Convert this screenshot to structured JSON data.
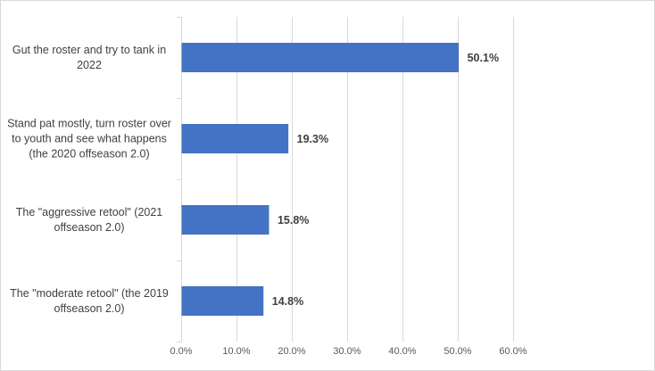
{
  "chart_data": {
    "type": "bar",
    "orientation": "horizontal",
    "categories": [
      "Gut the roster and try to tank in 2022",
      "Stand pat mostly, turn roster over to youth and see what happens (the 2020 offseason 2.0)",
      "The \"aggressive retool\" (2021 offseason 2.0)",
      "The \"moderate retool\" (the 2019 offseason 2.0)"
    ],
    "values": [
      50.1,
      19.3,
      15.8,
      14.8
    ],
    "data_labels": [
      "50.1%",
      "19.3%",
      "15.8%",
      "14.8%"
    ],
    "xlim": [
      0,
      60
    ],
    "xticks": [
      0,
      10,
      20,
      30,
      40,
      50,
      60
    ],
    "xtick_labels": [
      "0.0%",
      "10.0%",
      "20.0%",
      "30.0%",
      "40.0%",
      "50.0%",
      "60.0%"
    ],
    "grid": true,
    "legend": "none",
    "bar_color": "#4472c4",
    "title": "",
    "xlabel": "",
    "ylabel": ""
  }
}
